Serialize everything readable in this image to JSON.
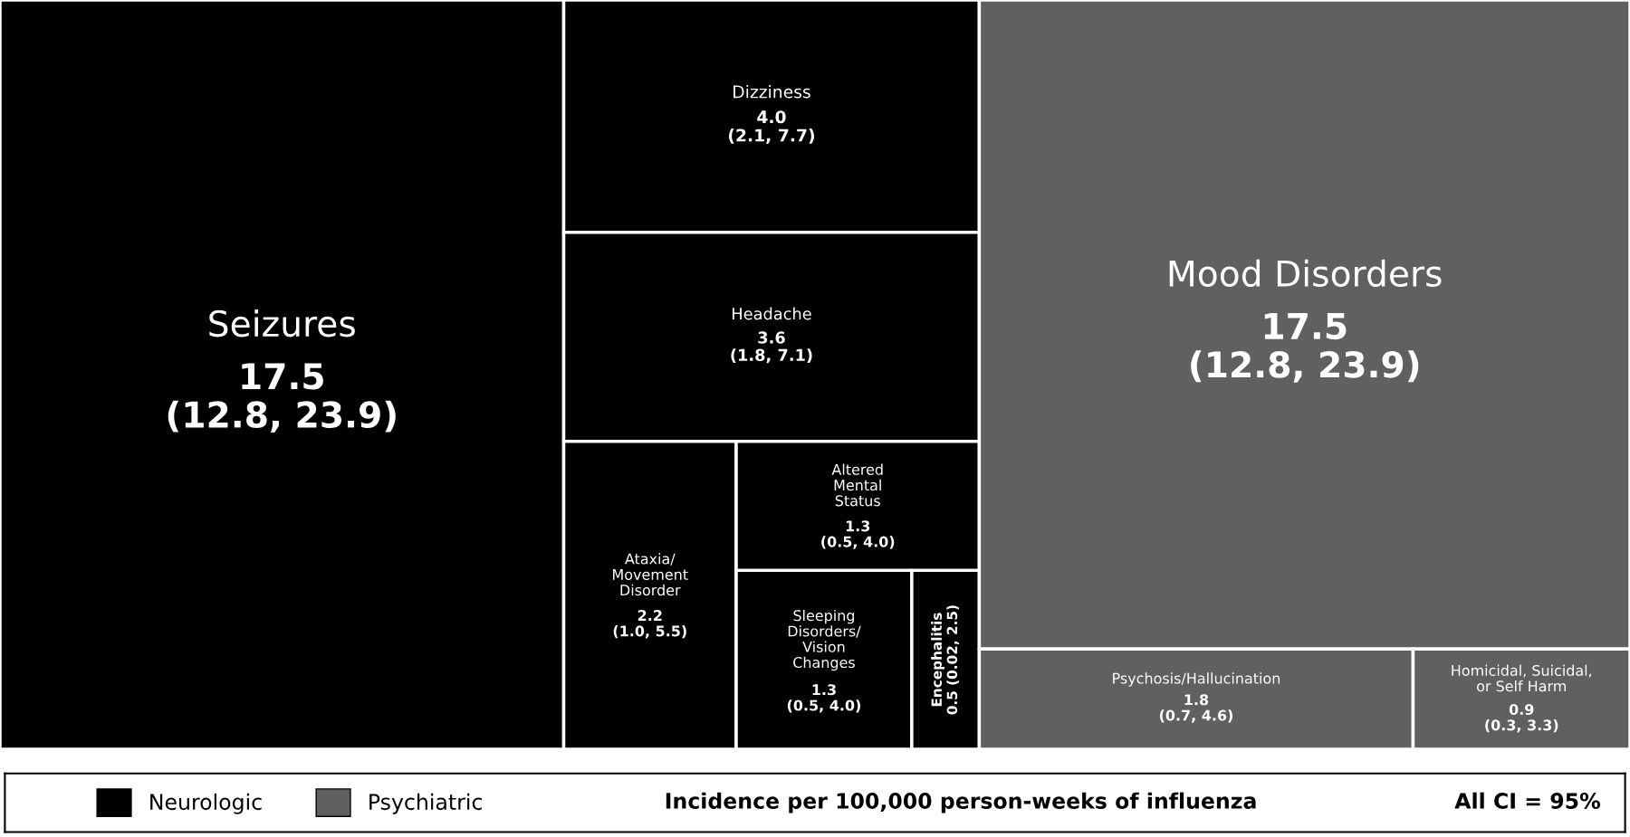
{
  "chart_data": {
    "type": "other",
    "categories": [
      "Seizures",
      "Dizziness",
      "Headache",
      "Ataxia/\nMovement\nDisorder",
      "Altered\nMental\nStatus",
      "Sleeping\nDisorders/\nVision\nChanges",
      "Encephalitis",
      "Mood Disorders",
      "Psychosis/Hallucination",
      "Homicidal, Suicidal,\nor Self Harm"
    ],
    "series": [
      {
        "name": "Neurologic",
        "color": "#000000",
        "values": [
          17.5,
          4.0,
          3.6,
          2.2,
          1.3,
          1.3,
          0.5,
          null,
          null,
          null
        ],
        "value_labels": [
          "17.5\n(12.8, 23.9)",
          "4.0\n(2.1, 7.7)",
          "3.6\n(1.8, 7.1)",
          "2.2\n(1.0, 5.5)",
          "1.3\n(0.5, 4.0)",
          "1.3\n(0.5, 4.0)",
          "0.5\n(0.02, 2.5)",
          null,
          null,
          null
        ]
      },
      {
        "name": "Psychiatric",
        "color": "#606060",
        "values": [
          null,
          null,
          null,
          null,
          null,
          null,
          null,
          17.5,
          1.8,
          0.9
        ],
        "value_labels": [
          null,
          null,
          null,
          null,
          null,
          null,
          null,
          "17.5\n(12.8, 23.9)",
          "1.8\n(0.7, 4.6)",
          "0.9\n(0.3, 3.3)"
        ]
      }
    ],
    "legend": "bottom left",
    "annotations": [
      "Incidence per 100,000 person-weeks of influenza",
      "All CI = 95%"
    ]
  }
}
